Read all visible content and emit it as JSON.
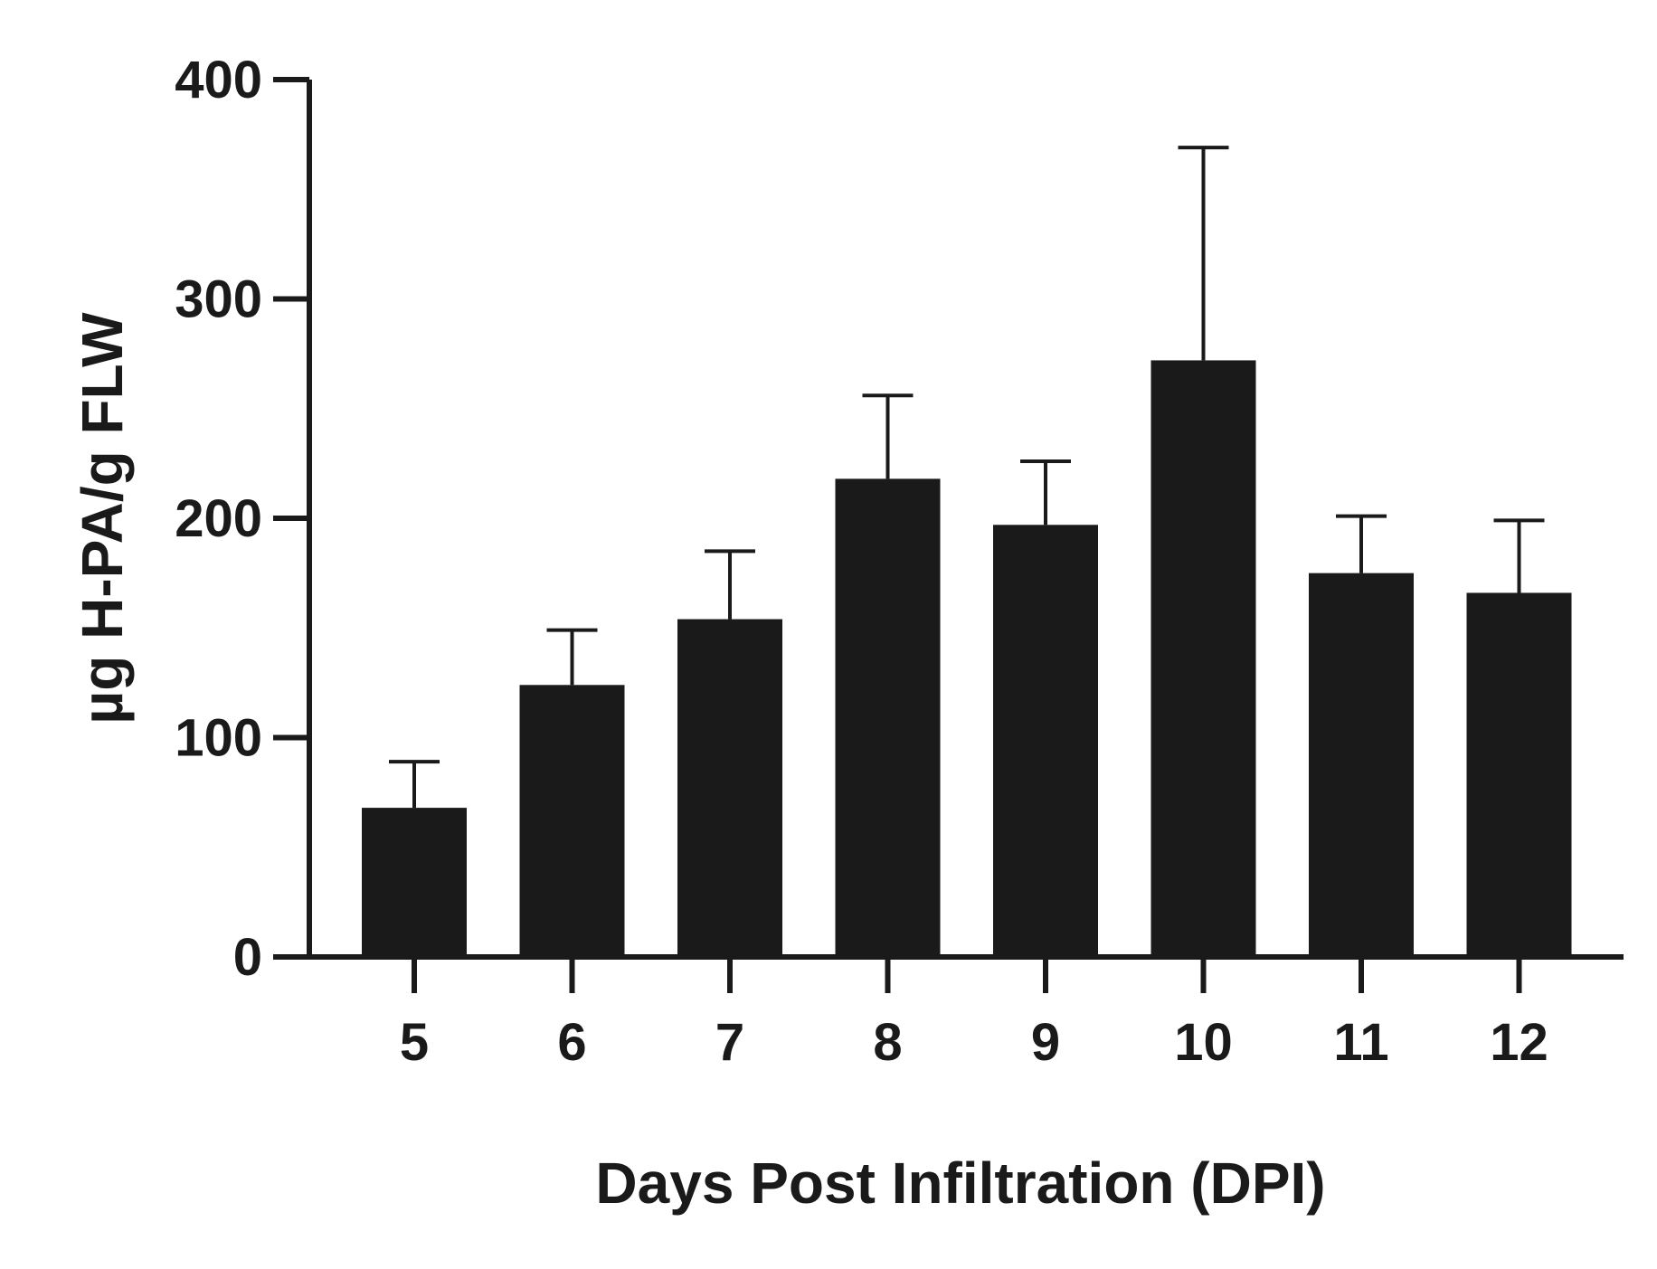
{
  "chart_data": {
    "type": "bar",
    "categories": [
      "5",
      "6",
      "7",
      "8",
      "9",
      "10",
      "11",
      "12"
    ],
    "values": [
      68,
      124,
      154,
      218,
      197,
      272,
      175,
      166
    ],
    "error_upper": [
      89,
      149,
      185,
      256,
      226,
      369,
      201,
      199
    ],
    "xlabel": "Days Post Infiltration (DPI)",
    "ylabel": "µg H-PA/g FLW",
    "ylim": [
      0,
      400
    ],
    "yticks": [
      "0",
      "100",
      "200",
      "300",
      "400"
    ],
    "grid": false,
    "bar_color": "#1a1a1a",
    "error_bar_color": "#1a1a1a"
  }
}
